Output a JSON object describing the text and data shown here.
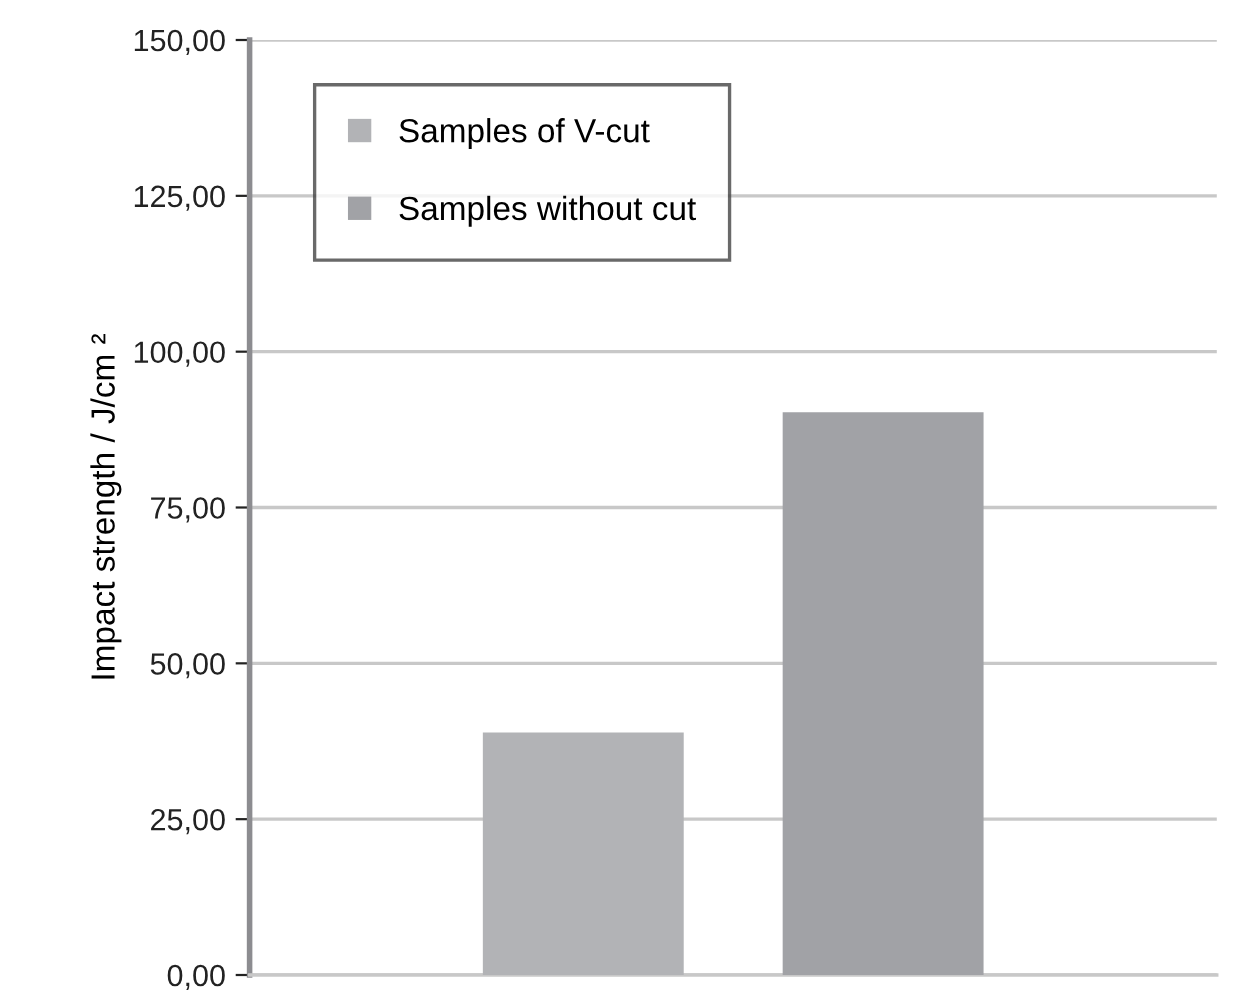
{
  "chart_data": {
    "type": "bar",
    "ylabel": "Impact strength / J/cm ²",
    "categories": [
      null
    ],
    "series": [
      {
        "name": "Samples of V-cut",
        "color": "#b2b3b6",
        "values": [
          38.9
        ]
      },
      {
        "name": "Samples without cut",
        "color": "#a1a2a6",
        "values": [
          90.3
        ]
      }
    ],
    "ylim": [
      0,
      150
    ],
    "yticks": [
      {
        "value": 0,
        "label": "0,00"
      },
      {
        "value": 25,
        "label": "25,00"
      },
      {
        "value": 50,
        "label": "50,00"
      },
      {
        "value": 75,
        "label": "75,00"
      },
      {
        "value": 100,
        "label": "100,00"
      },
      {
        "value": 125,
        "label": "125,00"
      },
      {
        "value": 150,
        "label": "150,00"
      }
    ],
    "grid": "y",
    "legend": "top left"
  }
}
